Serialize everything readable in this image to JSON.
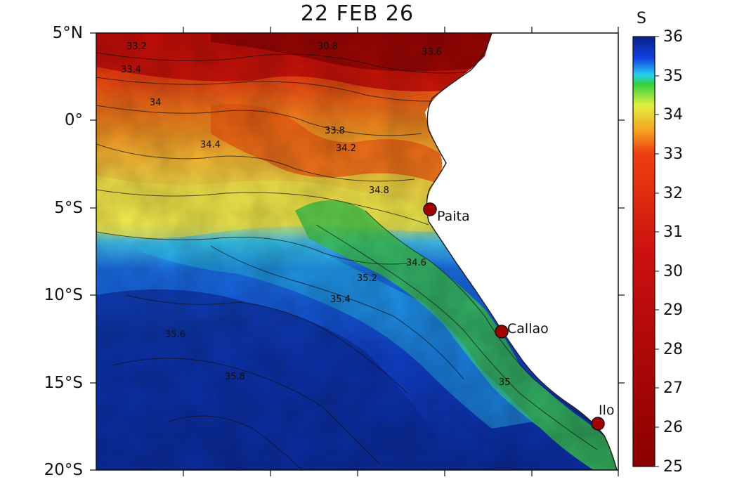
{
  "title": "22 FEB 26",
  "map": {
    "variable_unit": "S",
    "lat_ticks": [
      "5°N",
      "0°",
      "5°S",
      "10°S",
      "15°S",
      "20°S"
    ],
    "colorbar_ticks": [
      "36",
      "35",
      "34",
      "33",
      "32",
      "31",
      "30",
      "29",
      "28",
      "27",
      "26",
      "25"
    ],
    "colorbar_range": [
      25,
      36
    ],
    "colormap": [
      "#08208a",
      "#1240e0",
      "#1e90f0",
      "#27d0f0",
      "#30d040",
      "#b8e030",
      "#f0f040",
      "#f5a020",
      "#ee4010",
      "#cc1010",
      "#8a0000"
    ],
    "ports": [
      {
        "name": "Paita"
      },
      {
        "name": "Callao"
      },
      {
        "name": "Ilo"
      }
    ],
    "contour_labels": [
      "33.2",
      "33.4",
      "33.6",
      "33.8",
      "34",
      "34.2",
      "34.4",
      "34.6",
      "34.8",
      "35",
      "35.2",
      "35.4",
      "35.6",
      "35.8",
      "30.8"
    ],
    "colors": {
      "marker": "#a30000",
      "land": "#ffffff"
    }
  }
}
